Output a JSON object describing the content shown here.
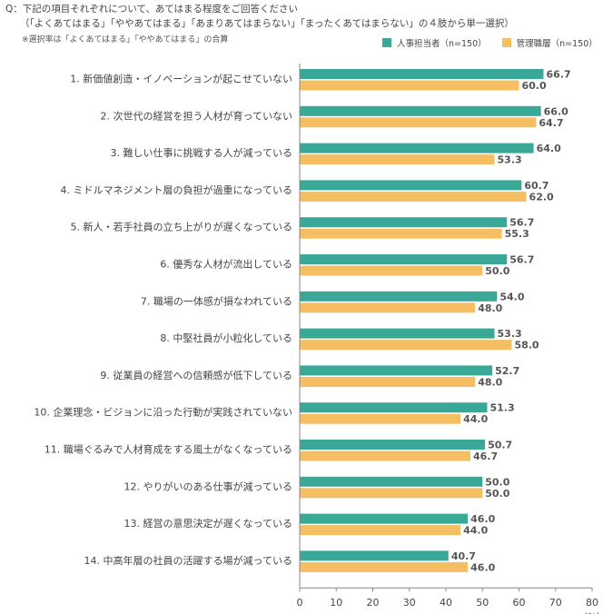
{
  "question": {
    "line1": "Q：下記の項目それぞれについて、あてはまる程度をご回答ください",
    "line2": "（「よくあてはまる」「ややあてはまる」「あまりあてはまらない」「まったくあてはまらない」の４肢から単一選択）",
    "note": "※選択率は「よくあてはまる」「ややあてはまる」の合算"
  },
  "chart_data": {
    "type": "bar",
    "orientation": "horizontal",
    "categories": [
      "1. 新価値創造・イノベーションが起こせていない",
      "2. 次世代の経営を担う人材が育っていない",
      "3. 難しい仕事に挑戦する人が減っている",
      "4. ミドルマネジメント層の負担が過重になっている",
      "5. 新人・若手社員の立ち上がりが遅くなっている",
      "6. 優秀な人材が流出している",
      "7. 職場の一体感が損なわれている",
      "8. 中堅社員が小粒化している",
      "9. 従業員の経営への信頼感が低下している",
      "10. 企業理念・ビジョンに沿った行動が実践されていない",
      "11. 職場ぐるみで人材育成をする風土がなくなっている",
      "12. やりがいのある仕事が減っている",
      "13. 経営の意思決定が遅くなっている",
      "14. 中高年層の社員の活躍する場が減っている"
    ],
    "series": [
      {
        "name": "人事担当者（n=150）",
        "color": "#3aa896",
        "values": [
          66.7,
          66.0,
          64.0,
          60.7,
          56.7,
          56.7,
          54.0,
          53.3,
          52.7,
          51.3,
          50.7,
          50.0,
          46.0,
          40.7
        ]
      },
      {
        "name": "管理職層（n=150）",
        "color": "#f6be62",
        "values": [
          60.0,
          64.7,
          53.3,
          62.0,
          55.3,
          50.0,
          48.0,
          58.0,
          48.0,
          44.0,
          46.7,
          50.0,
          44.0,
          46.0
        ]
      }
    ],
    "xlim": [
      0,
      80
    ],
    "xticks": [
      "0",
      "10",
      "20",
      "30",
      "40",
      "50",
      "60",
      "70",
      "80"
    ],
    "xunit": "(%)",
    "grid": false,
    "legend_position": "top-right"
  }
}
